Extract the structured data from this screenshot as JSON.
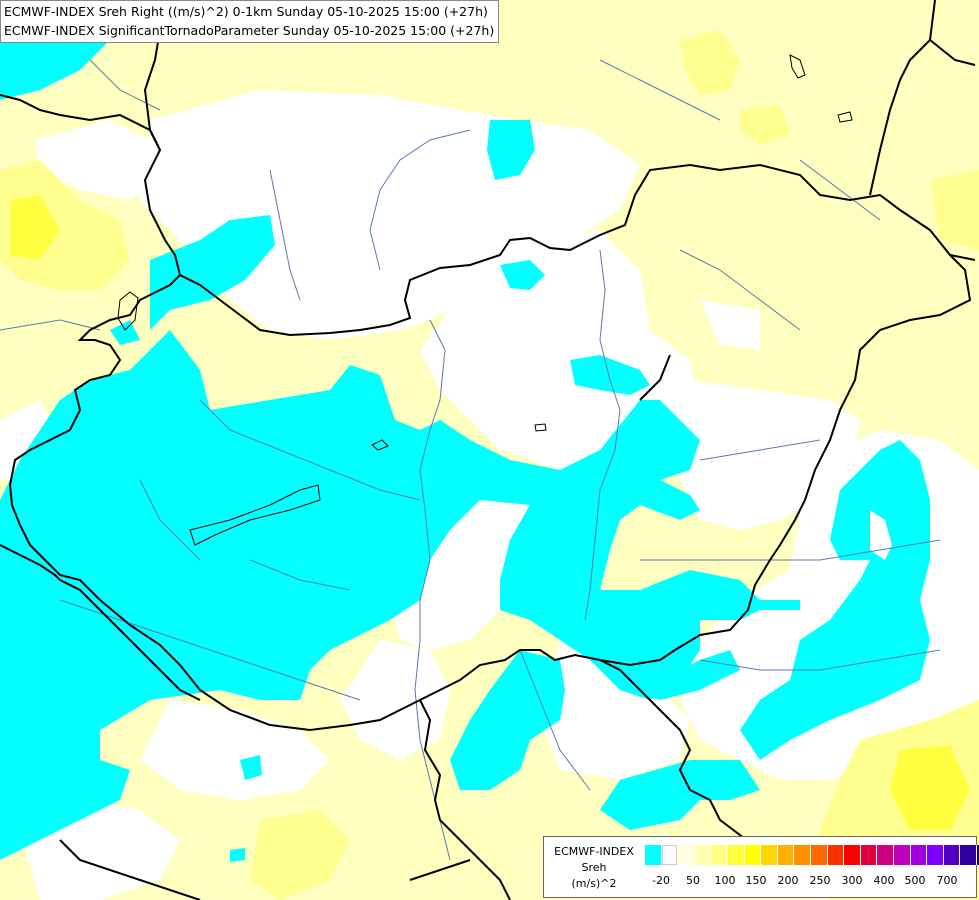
{
  "title": {
    "line1": "ECMWF-INDEX Sreh Right ((m/s)^2) 0-1km Sunday 05-10-2025 15:00 (+27h)",
    "line2": "ECMWF-INDEX SignificantTornadoParameter Sunday 05-10-2025 15:00 (+27h)"
  },
  "legend": {
    "source": "ECMWF-INDEX",
    "variable": "Sreh",
    "unit": "(m/s)^2",
    "colors": [
      "#00ffff",
      "#ffffff",
      "#ffffe0",
      "#ffffb0",
      "#ffff80",
      "#ffff40",
      "#ffff00",
      "#ffd800",
      "#ffb000",
      "#ff9000",
      "#ff6800",
      "#ff3000",
      "#ff0000",
      "#e00040",
      "#d00080",
      "#c000c0",
      "#a000e0",
      "#8000ff",
      "#5000c0",
      "#3000a0",
      "#200080"
    ],
    "tick_labels": [
      "-20",
      "50",
      "100",
      "150",
      "200",
      "250",
      "300",
      "400",
      "500",
      "700"
    ]
  },
  "map_colors": {
    "low_cyan": "#00ffff",
    "white": "#ffffff",
    "pale_yellow": "#ffffc0",
    "light_yellow": "#ffff90",
    "yellow": "#ffff40",
    "border": "#000000",
    "river": "#5a78b4"
  }
}
